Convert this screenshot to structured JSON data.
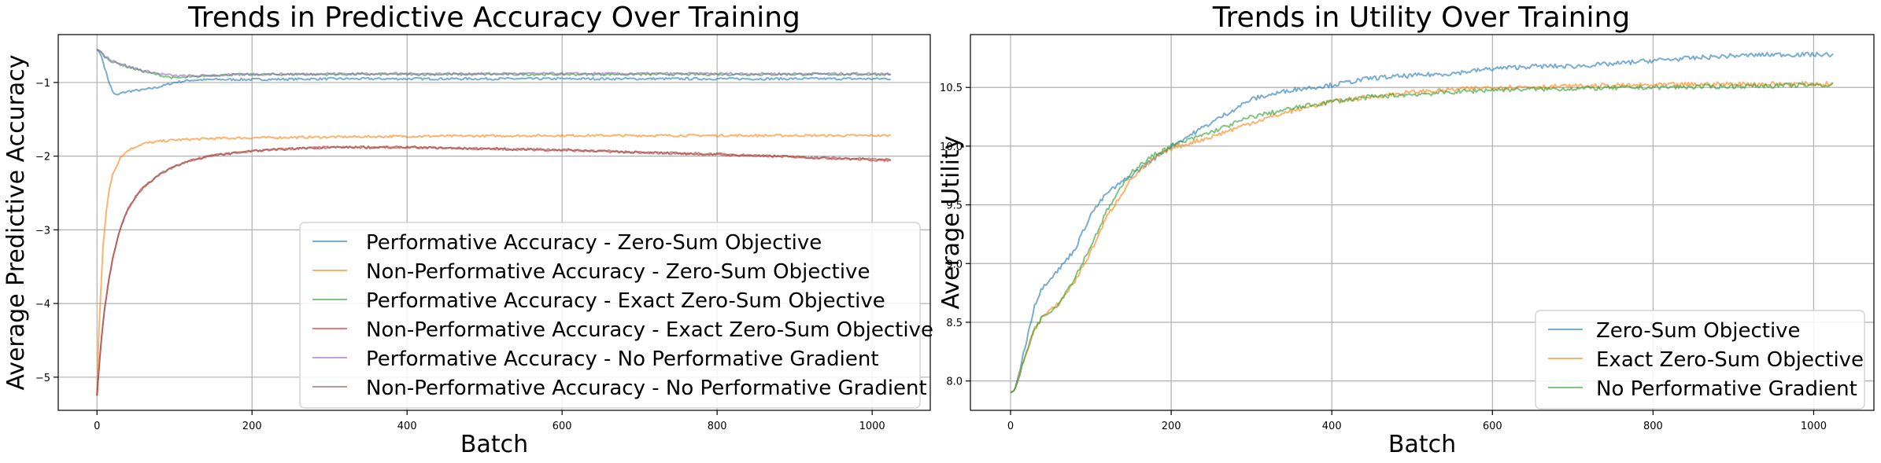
{
  "chart_data": [
    {
      "type": "line",
      "title": "Trends in Predictive Accuracy Over Training",
      "xlabel": "Batch",
      "ylabel": "Average Predictive Accuracy",
      "xlim": [
        -50,
        1075
      ],
      "ylim": [
        -5.45,
        -0.35
      ],
      "xticks": [
        0,
        200,
        400,
        600,
        800,
        1000
      ],
      "yticks": [
        -5,
        -4,
        -3,
        -2,
        -1
      ],
      "ytick_labels": [
        "−5",
        "−4",
        "−3",
        "−2",
        "−1"
      ],
      "grid": true,
      "legend_position": "lower-right",
      "series": [
        {
          "name": "Performative Accuracy - Zero-Sum Objective",
          "color": "#1f77b4",
          "x": [
            0,
            5,
            10,
            15,
            20,
            25,
            30,
            40,
            60,
            80,
            100,
            120,
            150,
            200,
            300,
            400,
            500,
            600,
            800,
            1024
          ],
          "y": [
            -0.55,
            -0.62,
            -0.8,
            -0.98,
            -1.12,
            -1.18,
            -1.15,
            -1.12,
            -1.1,
            -1.06,
            -1.0,
            -0.97,
            -0.96,
            -0.96,
            -0.95,
            -0.95,
            -0.95,
            -0.95,
            -0.95,
            -0.95
          ]
        },
        {
          "name": "Non-Performative Accuracy - Zero-Sum Objective",
          "color": "#ff7f0e",
          "x": [
            0,
            2,
            5,
            8,
            12,
            16,
            20,
            30,
            40,
            50,
            60,
            80,
            100,
            150,
            200,
            300,
            400,
            600,
            800,
            1024
          ],
          "y": [
            -5.25,
            -4.5,
            -3.8,
            -3.2,
            -2.75,
            -2.45,
            -2.25,
            -2.02,
            -1.92,
            -1.87,
            -1.83,
            -1.8,
            -1.78,
            -1.76,
            -1.75,
            -1.74,
            -1.73,
            -1.72,
            -1.72,
            -1.72
          ]
        },
        {
          "name": "Performative Accuracy - Exact Zero-Sum Objective",
          "color": "#2ca02c",
          "x": [
            0,
            5,
            10,
            20,
            40,
            60,
            80,
            100,
            120,
            150,
            200,
            300,
            400,
            600,
            800,
            1024
          ],
          "y": [
            -0.55,
            -0.58,
            -0.65,
            -0.72,
            -0.79,
            -0.85,
            -0.9,
            -0.94,
            -0.93,
            -0.9,
            -0.89,
            -0.89,
            -0.89,
            -0.89,
            -0.89,
            -0.89
          ]
        },
        {
          "name": "Non-Performative Accuracy - Exact Zero-Sum Objective",
          "color": "#d62728",
          "x": [
            0,
            5,
            10,
            15,
            20,
            30,
            40,
            50,
            60,
            80,
            100,
            120,
            150,
            200,
            250,
            300,
            400,
            500,
            600,
            700,
            800,
            900,
            1000,
            1024
          ],
          "y": [
            -5.25,
            -4.55,
            -4.05,
            -3.7,
            -3.4,
            -2.98,
            -2.72,
            -2.55,
            -2.42,
            -2.25,
            -2.14,
            -2.06,
            -1.99,
            -1.93,
            -1.9,
            -1.88,
            -1.88,
            -1.9,
            -1.92,
            -1.95,
            -1.98,
            -2.01,
            -2.05,
            -2.06
          ]
        },
        {
          "name": "Performative Accuracy - No Performative Gradient",
          "color": "#9467bd",
          "x": [
            0,
            5,
            10,
            20,
            40,
            60,
            80,
            100,
            130,
            160,
            200,
            300,
            400,
            600,
            800,
            1024
          ],
          "y": [
            -0.55,
            -0.58,
            -0.64,
            -0.7,
            -0.78,
            -0.84,
            -0.88,
            -0.91,
            -0.91,
            -0.9,
            -0.89,
            -0.88,
            -0.88,
            -0.88,
            -0.88,
            -0.88
          ]
        },
        {
          "name": "Non-Performative Accuracy - No Performative Gradient",
          "color": "#8c564b",
          "x": [
            0,
            5,
            10,
            15,
            20,
            30,
            40,
            50,
            60,
            80,
            100,
            120,
            150,
            200,
            250,
            300,
            400,
            500,
            600,
            700,
            800,
            900,
            1000,
            1024
          ],
          "y": [
            -5.25,
            -4.55,
            -4.05,
            -3.7,
            -3.4,
            -2.98,
            -2.72,
            -2.55,
            -2.42,
            -2.25,
            -2.14,
            -2.06,
            -1.99,
            -1.93,
            -1.9,
            -1.88,
            -1.88,
            -1.9,
            -1.91,
            -1.95,
            -1.97,
            -2.01,
            -2.04,
            -2.05
          ]
        }
      ]
    },
    {
      "type": "line",
      "title": "Trends in Utility Over Training",
      "xlabel": "Batch",
      "ylabel": "Average Utility",
      "xlim": [
        -50,
        1075
      ],
      "ylim": [
        7.75,
        10.95
      ],
      "xticks": [
        0,
        200,
        400,
        600,
        800,
        1000
      ],
      "yticks": [
        8.0,
        8.5,
        9.0,
        9.5,
        10.0,
        10.5
      ],
      "ytick_labels": [
        "8.0",
        "8.5",
        "9.0",
        "9.5",
        "10.0",
        "10.5"
      ],
      "grid": true,
      "legend_position": "lower-right",
      "series": [
        {
          "name": "Zero-Sum Objective",
          "color": "#1f77b4",
          "x": [
            0,
            5,
            10,
            20,
            30,
            40,
            50,
            60,
            80,
            100,
            120,
            150,
            180,
            200,
            250,
            300,
            350,
            400,
            450,
            500,
            550,
            600,
            650,
            700,
            750,
            800,
            850,
            900,
            950,
            1000,
            1024
          ],
          "y": [
            7.9,
            7.92,
            8.05,
            8.35,
            8.65,
            8.8,
            8.88,
            8.95,
            9.12,
            9.42,
            9.6,
            9.75,
            9.9,
            10.0,
            10.2,
            10.4,
            10.48,
            10.52,
            10.58,
            10.6,
            10.62,
            10.66,
            10.68,
            10.68,
            10.7,
            10.73,
            10.75,
            10.77,
            10.78,
            10.78,
            10.78
          ]
        },
        {
          "name": "Exact Zero-Sum Objective",
          "color": "#ff7f0e",
          "x": [
            0,
            5,
            10,
            20,
            30,
            40,
            50,
            60,
            80,
            100,
            120,
            150,
            180,
            200,
            250,
            300,
            350,
            400,
            450,
            500,
            550,
            600,
            700,
            800,
            900,
            1000,
            1024
          ],
          "y": [
            7.9,
            7.92,
            8.02,
            8.25,
            8.45,
            8.55,
            8.6,
            8.66,
            8.85,
            9.1,
            9.4,
            9.72,
            9.9,
            9.98,
            10.08,
            10.2,
            10.3,
            10.38,
            10.42,
            10.46,
            10.48,
            10.5,
            10.51,
            10.52,
            10.53,
            10.53,
            10.53
          ]
        },
        {
          "name": "No Performative Gradient",
          "color": "#2ca02c",
          "x": [
            0,
            5,
            10,
            20,
            30,
            40,
            50,
            60,
            80,
            100,
            120,
            150,
            180,
            200,
            250,
            300,
            350,
            400,
            450,
            500,
            550,
            600,
            700,
            800,
            900,
            1000,
            1024
          ],
          "y": [
            7.9,
            7.92,
            8.02,
            8.25,
            8.45,
            8.55,
            8.6,
            8.66,
            8.88,
            9.15,
            9.45,
            9.78,
            9.93,
            10.0,
            10.12,
            10.25,
            10.32,
            10.38,
            10.42,
            10.44,
            10.46,
            10.48,
            10.49,
            10.5,
            10.51,
            10.52,
            10.52
          ]
        }
      ]
    }
  ]
}
